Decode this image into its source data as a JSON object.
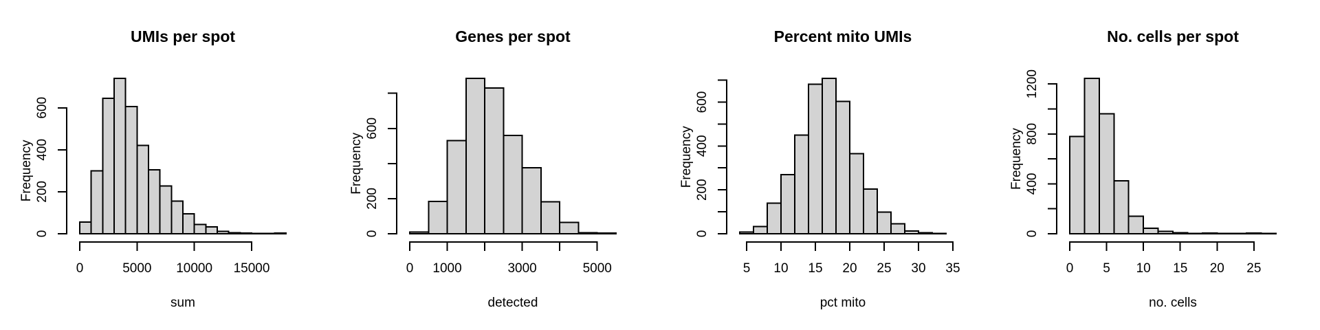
{
  "figure": {
    "background": "#ffffff",
    "bar_fill": "#d3d3d3",
    "bar_border": "#000000",
    "axis_color": "#000000",
    "text_color": "#000000"
  },
  "chart_data": [
    {
      "type": "bar",
      "subtype": "histogram",
      "title": "UMIs per spot",
      "xlabel": "sum",
      "ylabel": "Frequency",
      "bin_start": 0,
      "bin_width": 1000,
      "counts": [
        55,
        300,
        645,
        740,
        605,
        420,
        305,
        227,
        155,
        95,
        45,
        33,
        11,
        5,
        3,
        2,
        1,
        3
      ],
      "x_tick_values": [
        0,
        5000,
        10000,
        15000
      ],
      "x_tick_labels": [
        "0",
        "5000",
        "10000",
        "15000"
      ],
      "y_tick_values": [
        0,
        200,
        400,
        600
      ],
      "y_tick_labels": [
        "0",
        "200",
        "400",
        "600"
      ],
      "xlim": [
        0,
        18000
      ],
      "ylim": [
        0,
        740
      ],
      "grid": false,
      "legend": null
    },
    {
      "type": "bar",
      "subtype": "histogram",
      "title": "Genes per spot",
      "xlabel": "detected",
      "ylabel": "Frequency",
      "bin_start": 0,
      "bin_width": 500,
      "counts": [
        9,
        185,
        530,
        885,
        830,
        560,
        375,
        182,
        64,
        6,
        4
      ],
      "x_tick_values": [
        0,
        1000,
        2000,
        3000,
        4000,
        5000
      ],
      "x_tick_labels": [
        "0",
        "1000",
        "",
        "3000",
        "",
        "5000"
      ],
      "y_tick_values": [
        0,
        200,
        400,
        600,
        800
      ],
      "y_tick_labels": [
        "0",
        "200",
        "",
        "600",
        ""
      ],
      "xlim": [
        0,
        5500
      ],
      "ylim": [
        0,
        885
      ],
      "grid": false,
      "legend": null
    },
    {
      "type": "bar",
      "subtype": "histogram",
      "title": "Percent mito UMIs",
      "xlabel": "pct mito",
      "ylabel": "Frequency",
      "bin_start": 4,
      "bin_width": 2,
      "counts": [
        8,
        33,
        140,
        270,
        450,
        682,
        708,
        603,
        365,
        203,
        99,
        45,
        12,
        4,
        2
      ],
      "x_tick_values": [
        5,
        10,
        15,
        20,
        25,
        30,
        35
      ],
      "x_tick_labels": [
        "5",
        "10",
        "15",
        "20",
        "25",
        "30",
        "35"
      ],
      "y_tick_values": [
        0,
        100,
        200,
        300,
        400,
        500,
        600,
        700
      ],
      "y_tick_labels": [
        "0",
        "",
        "200",
        "",
        "400",
        "",
        "600",
        ""
      ],
      "xlim": [
        4,
        34
      ],
      "ylim": [
        0,
        708
      ],
      "grid": false,
      "legend": null
    },
    {
      "type": "bar",
      "subtype": "histogram",
      "title": "No. cells per spot",
      "xlabel": "no. cells",
      "ylabel": "Frequency",
      "bin_start": 0,
      "bin_width": 2,
      "counts": [
        780,
        1245,
        960,
        425,
        140,
        45,
        18,
        8,
        2,
        5,
        2,
        2,
        5,
        2
      ],
      "x_tick_values": [
        0,
        5,
        10,
        15,
        20,
        25
      ],
      "x_tick_labels": [
        "0",
        "5",
        "10",
        "15",
        "20",
        "25"
      ],
      "y_tick_values": [
        0,
        200,
        400,
        600,
        800,
        1000,
        1200
      ],
      "y_tick_labels": [
        "0",
        "",
        "400",
        "",
        "800",
        "",
        "1200"
      ],
      "xlim": [
        0,
        28
      ],
      "ylim": [
        0,
        1245
      ],
      "grid": false,
      "legend": null
    }
  ]
}
